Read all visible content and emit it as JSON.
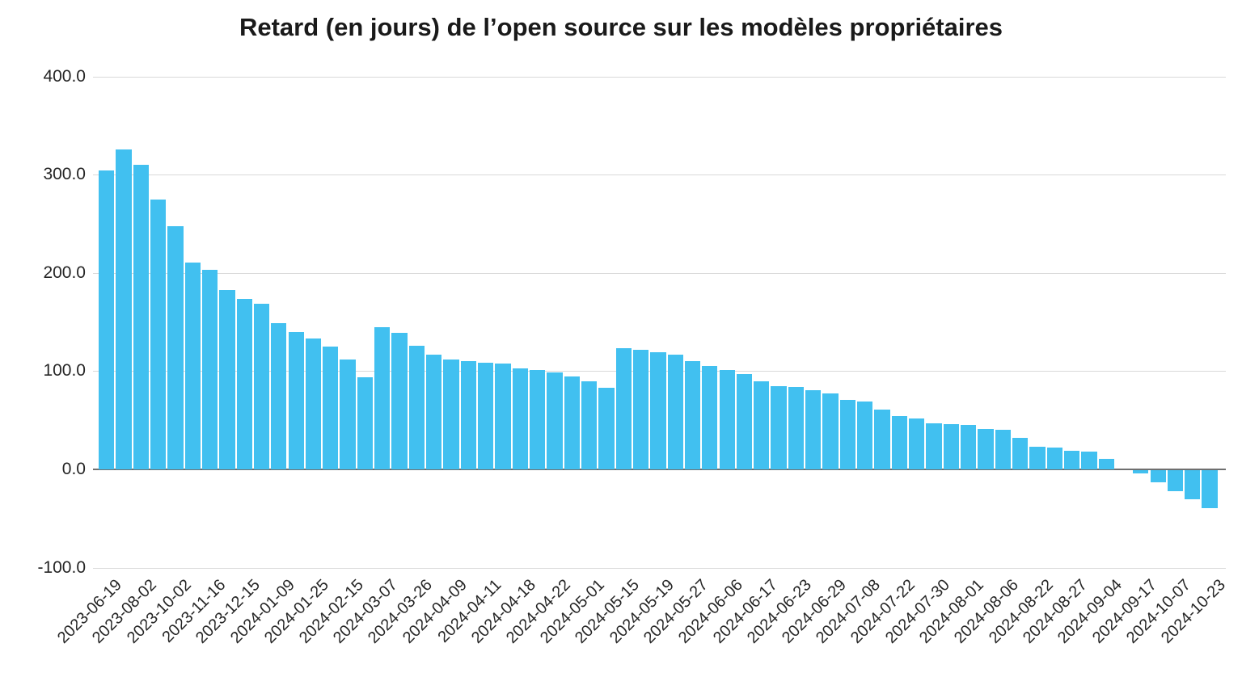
{
  "chart_data": {
    "type": "bar",
    "title": "Retard (en jours) de l’open source sur les modèles propriétaires",
    "xlabel": "",
    "ylabel": "",
    "ylim": [
      -100,
      400
    ],
    "grid": true,
    "legend": "none",
    "bar_color": "#41c0f0",
    "zero_line_color": "#6f6f6f",
    "gridline_color": "#d9d9d9",
    "y_tick_values": [
      400,
      300,
      200,
      100,
      0,
      -100
    ],
    "y_tick_labels": [
      "400.0",
      "300.0",
      "200.0",
      "100.0",
      "0.0",
      "-100.0"
    ],
    "x_tick_labels": [
      "2023-06-19",
      "2023-08-02",
      "2023-10-02",
      "2023-11-16",
      "2023-12-15",
      "2024-01-09",
      "2024-01-25",
      "2024-02-15",
      "2024-03-07",
      "2024-03-26",
      "2024-04-09",
      "2024-04-11",
      "2024-04-18",
      "2024-04-22",
      "2024-05-01",
      "2024-05-15",
      "2024-05-19",
      "2024-05-27",
      "2024-06-06",
      "2024-06-17",
      "2024-06-23",
      "2024-06-29",
      "2024-07-08",
      "2024-07-22",
      "2024-07-30",
      "2024-08-01",
      "2024-08-06",
      "2024-08-22",
      "2024-08-27",
      "2024-09-04",
      "2024-09-17",
      "2024-10-07",
      "2024-10-23"
    ],
    "x_tick_every_n_bars": 2,
    "values": [
      304,
      326,
      310,
      275,
      248,
      211,
      203,
      183,
      174,
      169,
      149,
      140,
      133,
      125,
      112,
      94,
      145,
      139,
      126,
      117,
      112,
      110,
      109,
      108,
      103,
      101,
      99,
      95,
      90,
      83,
      123,
      122,
      119,
      117,
      110,
      105,
      101,
      97,
      90,
      85,
      84,
      81,
      77,
      71,
      69,
      61,
      54,
      52,
      47,
      46,
      45,
      41,
      40,
      32,
      23,
      22,
      19,
      18,
      11,
      0,
      -3,
      -12,
      -21,
      -30,
      -39
    ]
  }
}
